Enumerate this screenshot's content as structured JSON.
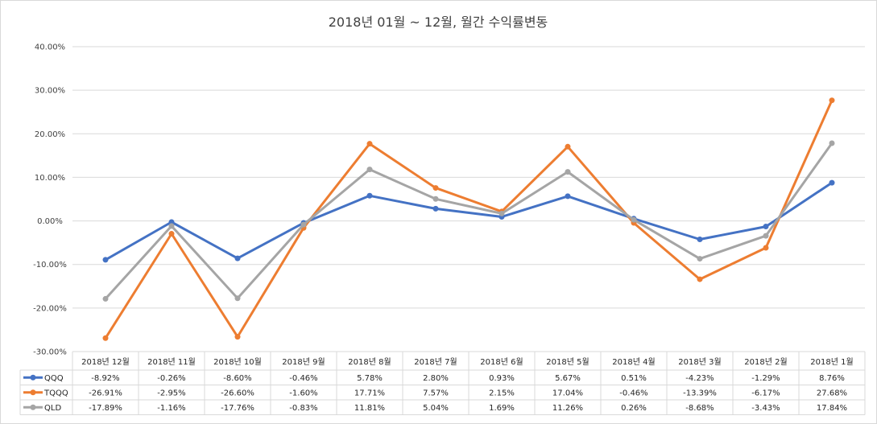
{
  "chart_data": {
    "type": "line",
    "title": "2018년 01월 ~ 12월, 월간 수익률변동",
    "categories": [
      "2018년 12월",
      "2018년 11월",
      "2018년 10월",
      "2018년 9월",
      "2018년 8월",
      "2018년 7월",
      "2018년 6월",
      "2018년 5월",
      "2018년 4월",
      "2018년 3월",
      "2018년 2월",
      "2018년 1월"
    ],
    "ylim": [
      -30,
      40
    ],
    "yticks": [
      -30,
      -20,
      -10,
      0,
      10,
      20,
      30,
      40
    ],
    "ytick_labels": [
      "-30.00%",
      "-20.00%",
      "-10.00%",
      "0.00%",
      "10.00%",
      "20.00%",
      "30.00%",
      "40.00%"
    ],
    "grid": true,
    "legend": "data-table",
    "series": [
      {
        "name": "QQQ",
        "color": "#4472c4",
        "values": [
          -8.92,
          -0.26,
          -8.6,
          -0.46,
          5.78,
          2.8,
          0.93,
          5.67,
          0.51,
          -4.23,
          -1.29,
          8.76
        ],
        "labels": [
          "-8.92%",
          "-0.26%",
          "-8.60%",
          "-0.46%",
          "5.78%",
          "2.80%",
          "0.93%",
          "5.67%",
          "0.51%",
          "-4.23%",
          "-1.29%",
          "8.76%"
        ]
      },
      {
        "name": "TQQQ",
        "color": "#ed7d31",
        "values": [
          -26.91,
          -2.95,
          -26.6,
          -1.6,
          17.71,
          7.57,
          2.15,
          17.04,
          -0.46,
          -13.39,
          -6.17,
          27.68
        ],
        "labels": [
          "-26.91%",
          "-2.95%",
          "-26.60%",
          "-1.60%",
          "17.71%",
          "7.57%",
          "2.15%",
          "17.04%",
          "-0.46%",
          "-13.39%",
          "-6.17%",
          "27.68%"
        ]
      },
      {
        "name": "QLD",
        "color": "#a5a5a5",
        "values": [
          -17.89,
          -1.16,
          -17.76,
          -0.83,
          11.81,
          5.04,
          1.69,
          11.26,
          0.26,
          -8.68,
          -3.43,
          17.84
        ],
        "labels": [
          "-17.89%",
          "-1.16%",
          "-17.76%",
          "-0.83%",
          "11.81%",
          "5.04%",
          "1.69%",
          "11.26%",
          "0.26%",
          "-8.68%",
          "-3.43%",
          "17.84%"
        ]
      }
    ]
  }
}
